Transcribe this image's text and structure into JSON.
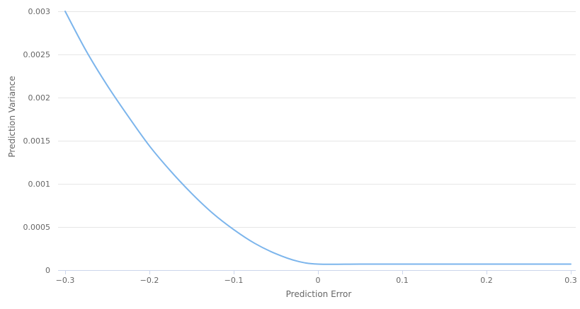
{
  "chart_data": {
    "type": "line",
    "xlabel": "Prediction Error",
    "ylabel": "Prediction Variance",
    "xlim": [
      -0.3,
      0.3
    ],
    "ylim": [
      0,
      0.003
    ],
    "x_ticks": [
      "−0.3",
      "−0.2",
      "−0.1",
      "0",
      "0.1",
      "0.2",
      "0.3"
    ],
    "x_tick_values": [
      -0.3,
      -0.2,
      -0.1,
      0,
      0.1,
      0.2,
      0.3
    ],
    "y_ticks": [
      "0",
      "0.0005",
      "0.001",
      "0.0015",
      "0.002",
      "0.0025",
      "0.003"
    ],
    "y_tick_values": [
      0,
      0.0005,
      0.001,
      0.0015,
      0.002,
      0.0025,
      0.003
    ],
    "grid": true,
    "series": [
      {
        "color": "#7cb5ec",
        "x": [
          -0.3,
          -0.275,
          -0.25,
          -0.225,
          -0.2,
          -0.175,
          -0.15,
          -0.125,
          -0.1,
          -0.075,
          -0.05,
          -0.025,
          0,
          0.05,
          0.1,
          0.15,
          0.2,
          0.25,
          0.3
        ],
        "y": [
          0.003,
          0.00254,
          0.00214,
          0.00178,
          0.00144,
          0.00115,
          0.00089,
          0.00066,
          0.00047,
          0.00031,
          0.00019,
          0.000105,
          7e-05,
          7e-05,
          7e-05,
          7e-05,
          7e-05,
          7e-05,
          7e-05
        ]
      }
    ]
  }
}
